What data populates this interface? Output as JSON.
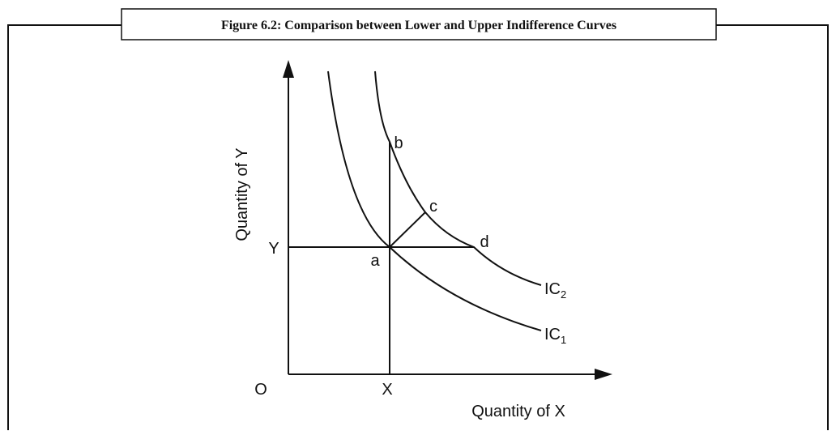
{
  "figure": {
    "title": "Figure 6.2: Comparison between Lower and Upper Indifference Curves"
  },
  "axes": {
    "y_label": "Quantity of Y",
    "x_label": "Quantity of X",
    "origin": "O",
    "x_mark": "X",
    "y_mark": "Y"
  },
  "points": [
    "a",
    "b",
    "c",
    "d"
  ],
  "curves": [
    {
      "main": "IC",
      "sub": "1"
    },
    {
      "main": "IC",
      "sub": "2"
    }
  ]
}
